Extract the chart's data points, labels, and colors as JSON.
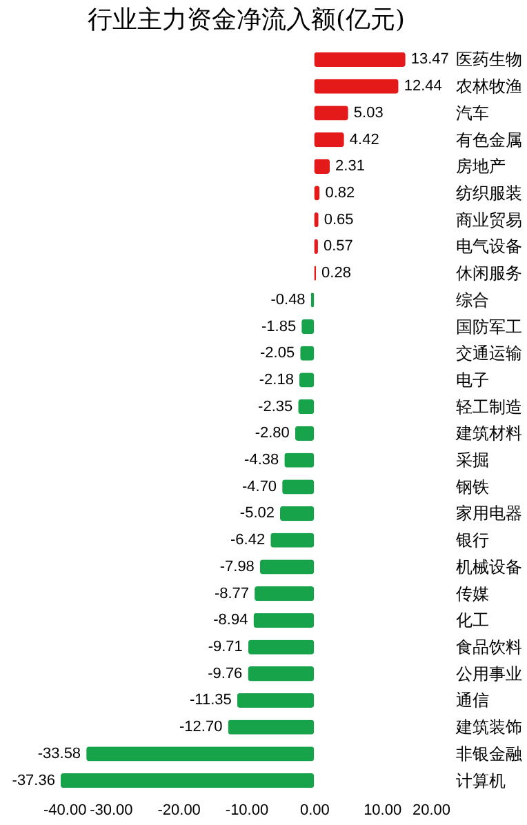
{
  "chart_data": {
    "type": "bar",
    "orientation": "horizontal",
    "title": "行业主力资金净流入额(亿元)",
    "categories": [
      "医药生物",
      "农林牧渔",
      "汽车",
      "有色金属",
      "房地产",
      "纺织服装",
      "商业贸易",
      "电气设备",
      "休闲服务",
      "综合",
      "国防军工",
      "交通运输",
      "电子",
      "轻工制造",
      "建筑材料",
      "采掘",
      "钢铁",
      "家用电器",
      "银行",
      "机械设备",
      "传媒",
      "化工",
      "食品饮料",
      "公用事业",
      "通信",
      "建筑装饰",
      "非银金融",
      "计算机"
    ],
    "values": [
      13.47,
      12.44,
      5.03,
      4.42,
      2.31,
      0.82,
      0.65,
      0.57,
      0.28,
      -0.48,
      -1.85,
      -2.05,
      -2.18,
      -2.35,
      -2.8,
      -4.38,
      -4.7,
      -5.02,
      -6.42,
      -7.98,
      -8.77,
      -8.94,
      -9.71,
      -9.76,
      -11.35,
      -12.7,
      -33.58,
      -37.36
    ],
    "value_labels": [
      "13.47",
      "12.44",
      "5.03",
      "4.42",
      "2.31",
      "0.82",
      "0.65",
      "0.57",
      "0.28",
      "-0.48",
      "-1.85",
      "-2.05",
      "-2.18",
      "-2.35",
      "-2.80",
      "-4.38",
      "-4.70",
      "-5.02",
      "-6.42",
      "-7.98",
      "-8.77",
      "-8.94",
      "-9.71",
      "-9.76",
      "-11.35",
      "-12.70",
      "-33.58",
      "-37.36"
    ],
    "colors": [
      "#e41a1a",
      "#e41a1a",
      "#e41a1a",
      "#e41a1a",
      "#e41a1a",
      "#e41a1a",
      "#e41a1a",
      "#e41a1a",
      "#e41a1a",
      "#16a34a",
      "#16a34a",
      "#16a34a",
      "#16a34a",
      "#16a34a",
      "#16a34a",
      "#16a34a",
      "#16a34a",
      "#16a34a",
      "#16a34a",
      "#16a34a",
      "#16a34a",
      "#16a34a",
      "#16a34a",
      "#16a34a",
      "#16a34a",
      "#16a34a",
      "#16a34a",
      "#16a34a"
    ],
    "xlim": [
      -40,
      20
    ],
    "xticks": [
      {
        "value": -40,
        "label": "-40.00"
      },
      {
        "value": -30,
        "label": "-30.00"
      },
      {
        "value": -20,
        "label": "-20.00"
      },
      {
        "value": -10,
        "label": "-10.00"
      },
      {
        "value": 0,
        "label": "0.00"
      },
      {
        "value": 10,
        "label": "10.00"
      },
      {
        "value": 20,
        "label": "20.00"
      }
    ],
    "grid": false
  }
}
